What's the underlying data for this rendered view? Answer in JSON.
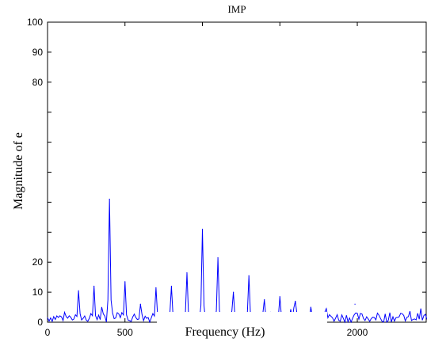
{
  "chart_data": {
    "type": "line",
    "title": "IMP",
    "xlabel": "Frequency (Hz)",
    "ylabel": "Magnitude of e",
    "xlim": [
      0,
      2450
    ],
    "ylim": [
      0,
      100
    ],
    "x_ticks": [
      0,
      500,
      2000
    ],
    "x_tick_labels": [
      "0",
      "500",
      "2000"
    ],
    "y_ticks": [
      0,
      10,
      20,
      80,
      90,
      100
    ],
    "y_tick_labels": [
      "0",
      "10",
      "20",
      "80",
      "90",
      "100"
    ],
    "grid": false,
    "legend": "none",
    "series": [
      {
        "color": "#0000ff",
        "peaks": [
          {
            "x": 200,
            "y": 10.5
          },
          {
            "x": 300,
            "y": 12
          },
          {
            "x": 400,
            "y": 41
          },
          {
            "x": 500,
            "y": 13.5
          },
          {
            "x": 600,
            "y": 6
          },
          {
            "x": 700,
            "y": 11.5
          },
          {
            "x": 800,
            "y": 12
          },
          {
            "x": 900,
            "y": 16.5
          },
          {
            "x": 1000,
            "y": 31
          },
          {
            "x": 1100,
            "y": 21.5
          },
          {
            "x": 1200,
            "y": 10
          },
          {
            "x": 1300,
            "y": 15.5
          },
          {
            "x": 1400,
            "y": 7.5
          },
          {
            "x": 1500,
            "y": 8.5
          },
          {
            "x": 1600,
            "y": 7
          },
          {
            "x": 1700,
            "y": 5
          },
          {
            "x": 1800,
            "y": 4.5
          },
          {
            "x": 1985,
            "y": 6
          }
        ],
        "noise_floor": 2
      }
    ]
  }
}
